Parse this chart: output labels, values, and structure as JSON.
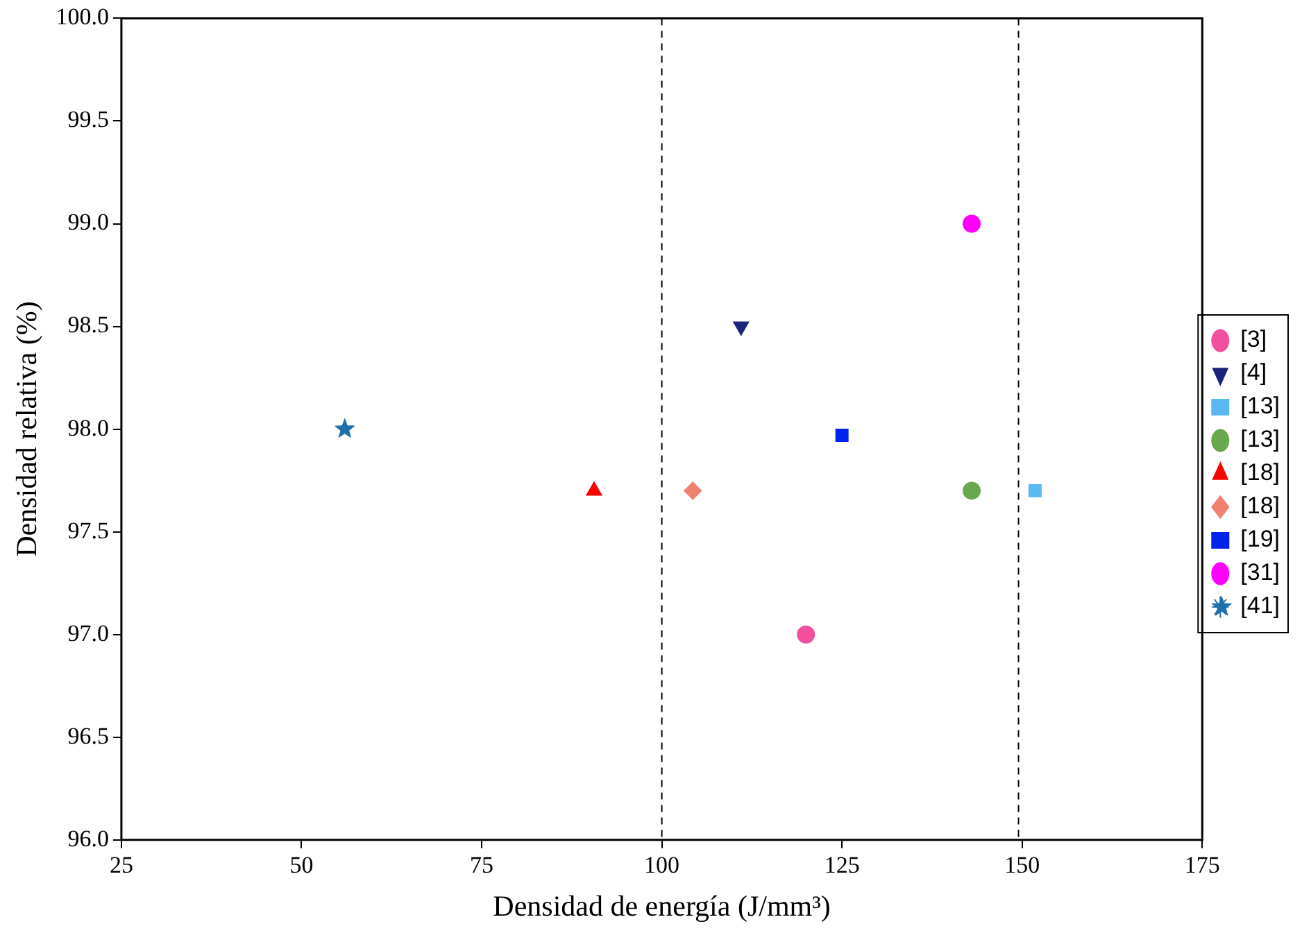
{
  "chart_data": {
    "type": "scatter",
    "xlabel": "Densidad de energía (J/mm³)",
    "ylabel": "Densidad relativa (%)",
    "xlim": [
      25,
      175
    ],
    "xticks": [
      25,
      50,
      75,
      100,
      125,
      150,
      175
    ],
    "ylim": [
      96,
      100
    ],
    "yticks": [
      {
        "value": 96,
        "label": "96.0"
      },
      96.5,
      {
        "value": 97,
        "label": "97.0"
      },
      97.5,
      {
        "value": 98,
        "label": "98.0"
      },
      98.5,
      {
        "value": 99,
        "label": "99.0"
      },
      99.5,
      {
        "value": 100,
        "label": "100.0"
      }
    ],
    "grid": false,
    "legend": "right",
    "ref_lines": [
      {
        "axis": "x",
        "value": 100,
        "line_style": "dashed",
        "color": "#000000"
      },
      {
        "axis": "x",
        "value": 149.5,
        "line_style": "dashed",
        "color": "#000000"
      }
    ],
    "series": [
      {
        "name": "[3]",
        "color": "#f0509e",
        "marker": "circle",
        "x": [
          120
        ],
        "values": [
          97.0
        ]
      },
      {
        "name": "[4]",
        "color": "#1a237e",
        "marker": "triangle-down",
        "x": [
          111
        ],
        "values": [
          98.5
        ]
      },
      {
        "name": "[13]",
        "color": "#5bb8f0",
        "marker": "square",
        "x": [
          151.8
        ],
        "values": [
          97.7
        ]
      },
      {
        "name": "[13]",
        "color": "#6aa84f",
        "marker": "circle",
        "x": [
          143
        ],
        "values": [
          97.7
        ]
      },
      {
        "name": "[18]",
        "color": "#ff0000",
        "marker": "triangle",
        "x": [
          90.6
        ],
        "values": [
          97.7
        ]
      },
      {
        "name": "[18]",
        "color": "#f08070",
        "marker": "diamond",
        "x": [
          104.3
        ],
        "values": [
          97.7
        ]
      },
      {
        "name": "[19]",
        "color": "#0022ee",
        "marker": "square",
        "x": [
          125
        ],
        "values": [
          97.97
        ]
      },
      {
        "name": "[31]",
        "color": "#ff00ff",
        "marker": "circle",
        "x": [
          143
        ],
        "values": [
          99.0
        ]
      },
      {
        "name": "[41]",
        "color": "#1f6fa8",
        "marker": "star",
        "x": [
          56
        ],
        "values": [
          98.0
        ]
      }
    ]
  }
}
